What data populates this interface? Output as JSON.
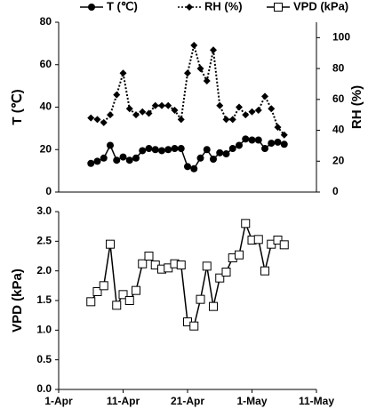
{
  "chart_data": [
    {
      "type": "line",
      "ylabel": "T (℃)",
      "y2label": "RH (%)",
      "x": [
        "04-06",
        "04-07",
        "04-08",
        "04-09",
        "04-10",
        "04-11",
        "04-12",
        "04-13",
        "04-14",
        "04-15",
        "04-16",
        "04-17",
        "04-18",
        "04-19",
        "04-20",
        "04-21",
        "04-22",
        "04-23",
        "04-24",
        "04-25",
        "04-26",
        "04-27",
        "04-28",
        "04-29",
        "04-30",
        "05-01",
        "05-02",
        "05-03",
        "05-04",
        "05-05",
        "05-06"
      ],
      "xlim": [
        "04-01",
        "05-11"
      ],
      "ylim": [
        0,
        80
      ],
      "yticks": [
        0,
        20,
        40,
        60,
        80
      ],
      "y2lim": [
        0,
        110
      ],
      "y2ticks": [
        0,
        20,
        40,
        60,
        80,
        100
      ],
      "series": [
        {
          "name": "T (℃)",
          "color": "#000000",
          "marker": "circle",
          "linestyle": "solid",
          "values": [
            13.5,
            14.5,
            16,
            22,
            15,
            16.5,
            15,
            16,
            19.5,
            20.5,
            20,
            19.5,
            20,
            20.5,
            20.5,
            12,
            11,
            16,
            20,
            15.5,
            18.5,
            18,
            20.5,
            22,
            25,
            24.5,
            24.5,
            20.5,
            23,
            23.5,
            22.5
          ]
        },
        {
          "name": "RH (%)",
          "color": "#000000",
          "marker": "diamond",
          "linestyle": "dotted",
          "axis": "y2",
          "values": [
            48,
            47,
            45,
            50,
            63,
            77,
            54,
            50,
            52,
            51,
            56,
            56,
            56,
            53,
            47,
            77,
            95,
            80,
            72,
            92,
            56,
            47,
            47,
            55,
            50,
            52,
            53,
            62,
            54,
            42,
            37
          ]
        }
      ]
    },
    {
      "type": "line",
      "ylabel": "VPD (kPa)",
      "x": [
        "04-06",
        "04-07",
        "04-08",
        "04-09",
        "04-10",
        "04-11",
        "04-12",
        "04-13",
        "04-14",
        "04-15",
        "04-16",
        "04-17",
        "04-18",
        "04-19",
        "04-20",
        "04-21",
        "04-22",
        "04-23",
        "04-24",
        "04-25",
        "04-26",
        "04-27",
        "04-28",
        "04-29",
        "04-30",
        "05-01",
        "05-02",
        "05-03",
        "05-04",
        "05-05",
        "05-06"
      ],
      "xlim": [
        "04-01",
        "05-11"
      ],
      "xticks": [
        {
          "value": "04-01",
          "label": "1-Apr"
        },
        {
          "value": "04-11",
          "label": "11-Apr"
        },
        {
          "value": "04-21",
          "label": "21-Apr"
        },
        {
          "value": "05-01",
          "label": "1-May"
        },
        {
          "value": "05-11",
          "label": "11-May"
        }
      ],
      "ylim": [
        0,
        3
      ],
      "yticks": [
        {
          "value": 0,
          "label": "0.0"
        },
        {
          "value": 0.5,
          "label": "0.5"
        },
        {
          "value": 1,
          "label": "1.0"
        },
        {
          "value": 1.5,
          "label": "1.5"
        },
        {
          "value": 2,
          "label": "2.0"
        },
        {
          "value": 2.5,
          "label": "2.5"
        },
        {
          "value": 3,
          "label": "3.0"
        }
      ],
      "series": [
        {
          "name": "VPD (kPa)",
          "color": "#000000",
          "marker": "square",
          "linestyle": "solid",
          "values": [
            1.48,
            1.65,
            1.75,
            2.45,
            1.42,
            1.6,
            1.5,
            1.67,
            2.12,
            2.25,
            2.1,
            2.03,
            2.05,
            2.12,
            2.1,
            1.14,
            1.07,
            1.52,
            2.08,
            1.4,
            1.88,
            1.98,
            2.22,
            2.27,
            2.8,
            2.52,
            2.53,
            2.0,
            2.45,
            2.52,
            2.44
          ]
        }
      ]
    }
  ]
}
